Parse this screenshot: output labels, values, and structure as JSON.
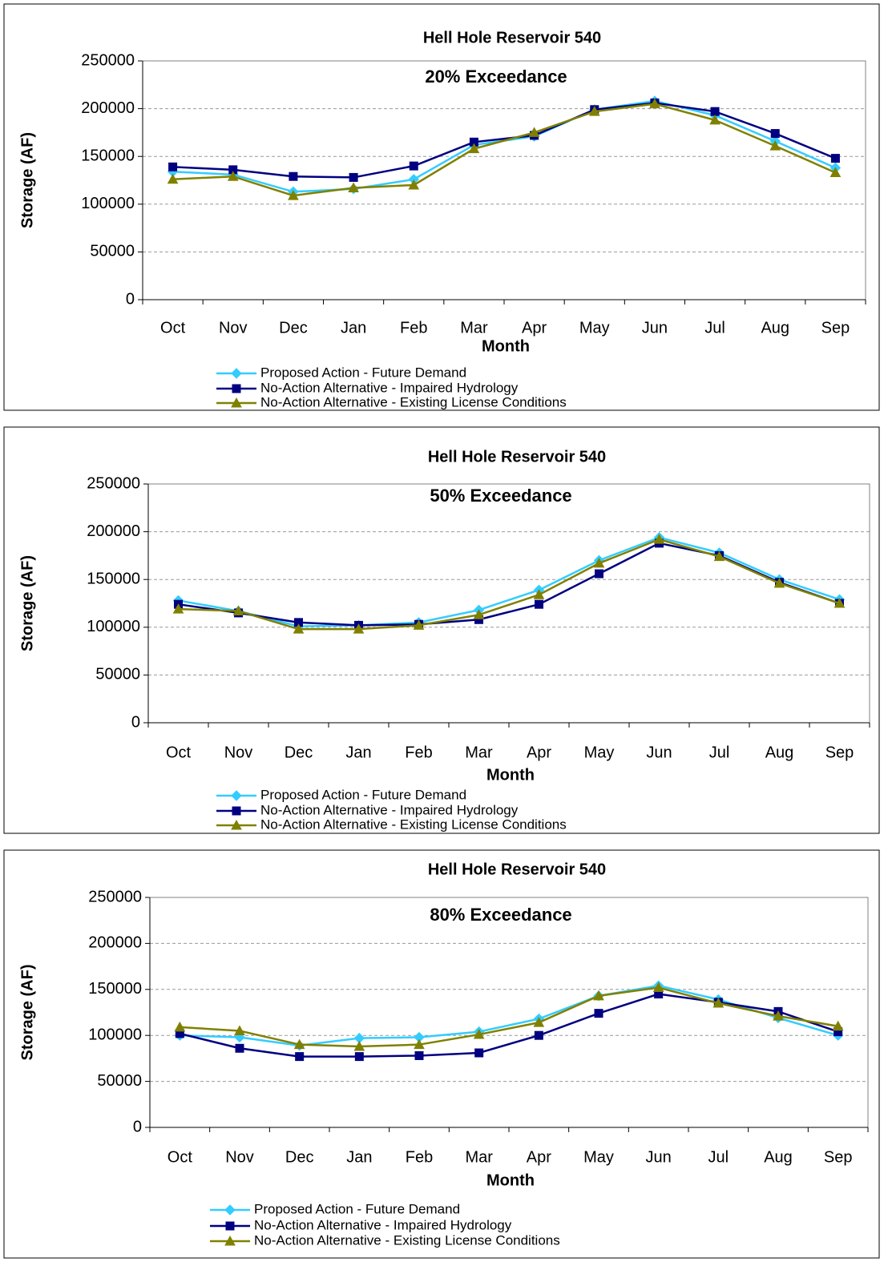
{
  "chart_data": [
    {
      "type": "line",
      "title": "Hell Hole Reservoir 540",
      "subtitle": "20% Exceedance",
      "x_label": "Month",
      "y_label": "Storage (AF)",
      "categories": [
        "Oct",
        "Nov",
        "Dec",
        "Jan",
        "Feb",
        "Mar",
        "Apr",
        "May",
        "Jun",
        "Jul",
        "Aug",
        "Sep"
      ],
      "series": [
        {
          "name": "Proposed Action - Future Demand",
          "color": "#33ccff",
          "marker": "diamond",
          "values": [
            134000,
            131000,
            113000,
            116000,
            126000,
            162000,
            171000,
            199000,
            208000,
            193000,
            166000,
            138000
          ]
        },
        {
          "name": "No-Action Alternative - Impaired Hydrology",
          "color": "#000080",
          "marker": "square",
          "values": [
            139000,
            136000,
            129000,
            128000,
            140000,
            165000,
            172000,
            199000,
            206000,
            197000,
            174000,
            148000
          ]
        },
        {
          "name": "No-Action Alternative - Existing License Conditions",
          "color": "#808000",
          "marker": "triangle",
          "values": [
            126000,
            129000,
            109000,
            117000,
            120000,
            158000,
            175000,
            197000,
            205000,
            188000,
            161000,
            133000
          ]
        }
      ],
      "ylim": [
        0,
        250000
      ],
      "yticks": [
        0,
        50000,
        100000,
        150000,
        200000,
        250000
      ],
      "grid": true,
      "legend": "bottom"
    },
    {
      "type": "line",
      "title": "Hell Hole Reservoir 540",
      "subtitle": "50% Exceedance",
      "x_label": "Month",
      "y_label": "Storage (AF)",
      "categories": [
        "Oct",
        "Nov",
        "Dec",
        "Jan",
        "Feb",
        "Mar",
        "Apr",
        "May",
        "Jun",
        "Jul",
        "Aug",
        "Sep"
      ],
      "series": [
        {
          "name": "Proposed Action - Future Demand",
          "color": "#33ccff",
          "marker": "diamond",
          "values": [
            128000,
            117000,
            101000,
            102000,
            105000,
            118000,
            139000,
            170000,
            194000,
            178000,
            150000,
            129000
          ]
        },
        {
          "name": "No-Action Alternative - Impaired Hydrology",
          "color": "#000080",
          "marker": "square",
          "values": [
            124000,
            115000,
            105000,
            102000,
            103000,
            108000,
            124000,
            156000,
            188000,
            175000,
            147000,
            125000
          ]
        },
        {
          "name": "No-Action Alternative - Existing License Conditions",
          "color": "#808000",
          "marker": "triangle",
          "values": [
            119000,
            117000,
            98000,
            98000,
            102000,
            113000,
            134000,
            167000,
            192000,
            174000,
            146000,
            125000
          ]
        }
      ],
      "ylim": [
        0,
        250000
      ],
      "yticks": [
        0,
        50000,
        100000,
        150000,
        200000,
        250000
      ],
      "grid": true,
      "legend": "bottom"
    },
    {
      "type": "line",
      "title": "Hell Hole Reservoir 540",
      "subtitle": "80% Exceedance",
      "x_label": "Month",
      "y_label": "Storage (AF)",
      "categories": [
        "Oct",
        "Nov",
        "Dec",
        "Jan",
        "Feb",
        "Mar",
        "Apr",
        "May",
        "Jun",
        "Jul",
        "Aug",
        "Sep"
      ],
      "series": [
        {
          "name": "Proposed Action - Future Demand",
          "color": "#33ccff",
          "marker": "diamond",
          "values": [
            100000,
            98000,
            89000,
            97000,
            98000,
            104000,
            118000,
            143000,
            154000,
            139000,
            119000,
            100000
          ]
        },
        {
          "name": "No-Action Alternative - Impaired Hydrology",
          "color": "#000080",
          "marker": "square",
          "values": [
            102000,
            86000,
            77000,
            77000,
            78000,
            81000,
            100000,
            124000,
            145000,
            136000,
            126000,
            104000
          ]
        },
        {
          "name": "No-Action Alternative - Existing License Conditions",
          "color": "#808000",
          "marker": "triangle",
          "values": [
            109000,
            105000,
            90000,
            88000,
            90000,
            101000,
            114000,
            143000,
            152000,
            135000,
            121000,
            110000
          ]
        }
      ],
      "ylim": [
        0,
        250000
      ],
      "yticks": [
        0,
        50000,
        100000,
        150000,
        200000,
        250000
      ],
      "grid": true,
      "legend": "bottom"
    }
  ]
}
